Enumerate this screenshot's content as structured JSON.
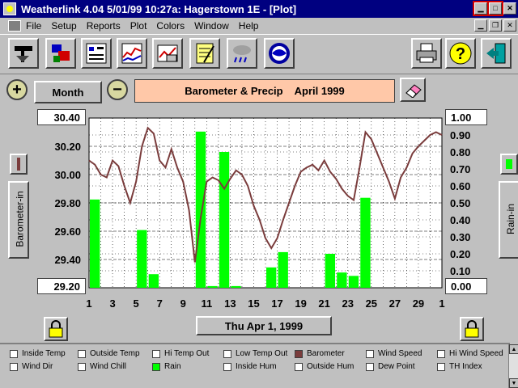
{
  "window": {
    "title": "Weatherlink 4.04   5/01/99  10:27a: Hagerstown 1E - [Plot]"
  },
  "menu": [
    "File",
    "Setup",
    "Reports",
    "Plot",
    "Colors",
    "Window",
    "Help"
  ],
  "toolbar": {
    "icons": [
      "download-icon",
      "station-icon",
      "bulletin-icon",
      "strip-chart-icon",
      "summary-icon",
      "notepad-icon",
      "forecast-icon",
      "noaa-icon",
      "printer-icon",
      "help-icon",
      "exit-icon"
    ]
  },
  "period_button": "Month",
  "plot_title": {
    "name": "Barometer & Precip",
    "month": "April 1999"
  },
  "left_axis_label": "Barometer-in",
  "right_axis_label": "Rain-in",
  "date_button": "Thu Apr 1, 1999",
  "legend": [
    {
      "label": "Inside Temp",
      "checked": false
    },
    {
      "label": "Outside Temp",
      "checked": false
    },
    {
      "label": "Hi Temp Out",
      "checked": false
    },
    {
      "label": "Low Temp Out",
      "checked": false
    },
    {
      "label": "Barometer",
      "checked": true,
      "color": "#7a3c3c"
    },
    {
      "label": "Wind Speed",
      "checked": false
    },
    {
      "label": "Hi Wind Speed",
      "checked": false
    },
    {
      "label": "Wind Dir",
      "checked": false
    },
    {
      "label": "Wind Chill",
      "checked": false
    },
    {
      "label": "Rain",
      "checked": true,
      "color": "#00ff00"
    },
    {
      "label": "Inside Hum",
      "checked": false
    },
    {
      "label": "Outside Hum",
      "checked": false
    },
    {
      "label": "Dew Point",
      "checked": false
    },
    {
      "label": "TH Index",
      "checked": false
    }
  ],
  "chart_data": {
    "type": "bar",
    "x_ticks": [
      "1",
      "3",
      "5",
      "7",
      "9",
      "11",
      "13",
      "15",
      "17",
      "19",
      "21",
      "23",
      "25",
      "27",
      "29",
      "1"
    ],
    "y_left_ticks": [
      "30.40",
      "30.20",
      "30.00",
      "29.80",
      "29.60",
      "29.40",
      "29.20"
    ],
    "y_right_ticks": [
      "1.00",
      "0.90",
      "0.80",
      "0.70",
      "0.60",
      "0.50",
      "0.40",
      "0.30",
      "0.20",
      "0.10",
      "0.00"
    ],
    "ylim_left": [
      29.2,
      30.4
    ],
    "ylim_right": [
      0,
      1.0
    ],
    "grid": true,
    "series": [
      {
        "name": "Rain",
        "color": "#00ff00",
        "axis": "right",
        "days": [
          1,
          2,
          3,
          4,
          5,
          6,
          7,
          8,
          9,
          10,
          11,
          12,
          13,
          14,
          15,
          16,
          17,
          18,
          19,
          20,
          21,
          22,
          23,
          24,
          25,
          26,
          27,
          28,
          29,
          30
        ],
        "values": [
          0.52,
          0,
          0,
          0,
          0.34,
          0.08,
          0,
          0,
          0,
          0.92,
          0.01,
          0.8,
          0.01,
          0,
          0,
          0.12,
          0.21,
          0,
          0,
          0,
          0.2,
          0.09,
          0.07,
          0.53,
          0,
          0,
          0,
          0,
          0,
          0
        ]
      },
      {
        "name": "Barometer",
        "color": "#7a3c3c",
        "axis": "left",
        "days": [
          1,
          1.5,
          2,
          2.5,
          3,
          3.5,
          4,
          4.5,
          5,
          5.5,
          6,
          6.5,
          7,
          7.5,
          8,
          8.5,
          9,
          9.5,
          10,
          10.5,
          11,
          11.5,
          12,
          12.5,
          13,
          13.5,
          14,
          14.5,
          15,
          15.5,
          16,
          16.5,
          17,
          17.5,
          18,
          18.5,
          19,
          19.5,
          20,
          20.5,
          21,
          21.5,
          22,
          22.5,
          23,
          23.5,
          24,
          24.5,
          25,
          25.5,
          26,
          26.5,
          27,
          27.5,
          28,
          28.5,
          29,
          29.5,
          30,
          30.5,
          31
        ],
        "values": [
          30.1,
          30.07,
          30.0,
          29.98,
          30.1,
          30.06,
          29.92,
          29.8,
          29.95,
          30.2,
          30.33,
          30.29,
          30.1,
          30.05,
          30.18,
          30.05,
          29.95,
          29.75,
          29.38,
          29.7,
          29.95,
          29.98,
          29.96,
          29.9,
          29.97,
          30.03,
          30.0,
          29.92,
          29.78,
          29.68,
          29.55,
          29.48,
          29.55,
          29.68,
          29.8,
          29.92,
          30.02,
          30.05,
          30.07,
          30.03,
          30.1,
          30.02,
          29.97,
          29.9,
          29.85,
          29.82,
          30.05,
          30.3,
          30.25,
          30.15,
          30.05,
          29.95,
          29.83,
          29.98,
          30.05,
          30.15,
          30.2,
          30.24,
          30.28,
          30.3,
          30.28
        ]
      }
    ]
  }
}
